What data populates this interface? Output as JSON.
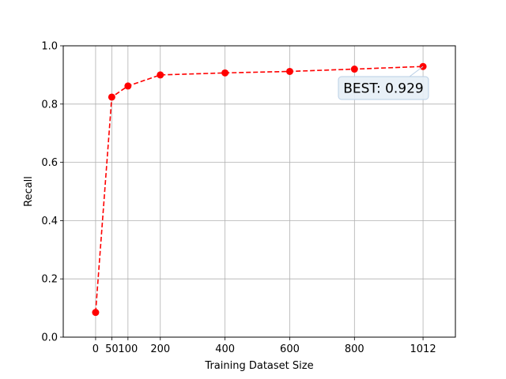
{
  "chart_data": {
    "type": "line",
    "xlabel": "Training Dataset Size",
    "ylabel": "Recall",
    "xlim": [
      -100,
      1112
    ],
    "ylim": [
      0.0,
      1.0
    ],
    "grid": true,
    "x_ticks": [
      0,
      50,
      100,
      200,
      400,
      600,
      800,
      1012
    ],
    "x_tick_labels": [
      "0",
      "50",
      "100",
      "200",
      "400",
      "600",
      "800",
      "1012"
    ],
    "y_ticks": [
      0.0,
      0.2,
      0.4,
      0.6,
      0.8,
      1.0
    ],
    "y_tick_labels": [
      "0.0",
      "0.2",
      "0.4",
      "0.6",
      "0.8",
      "1.0"
    ],
    "series": [
      {
        "color": "#ff0000",
        "line_style": "dashed",
        "marker": "circle",
        "x": [
          0,
          50,
          100,
          200,
          400,
          600,
          800,
          1012
        ],
        "y": [
          0.085,
          0.824,
          0.862,
          0.9,
          0.907,
          0.912,
          0.92,
          0.929
        ]
      }
    ],
    "annotation": {
      "text": "BEST: 0.929",
      "x": 1012,
      "y": 0.929,
      "box_color": "#e6eef6"
    }
  }
}
